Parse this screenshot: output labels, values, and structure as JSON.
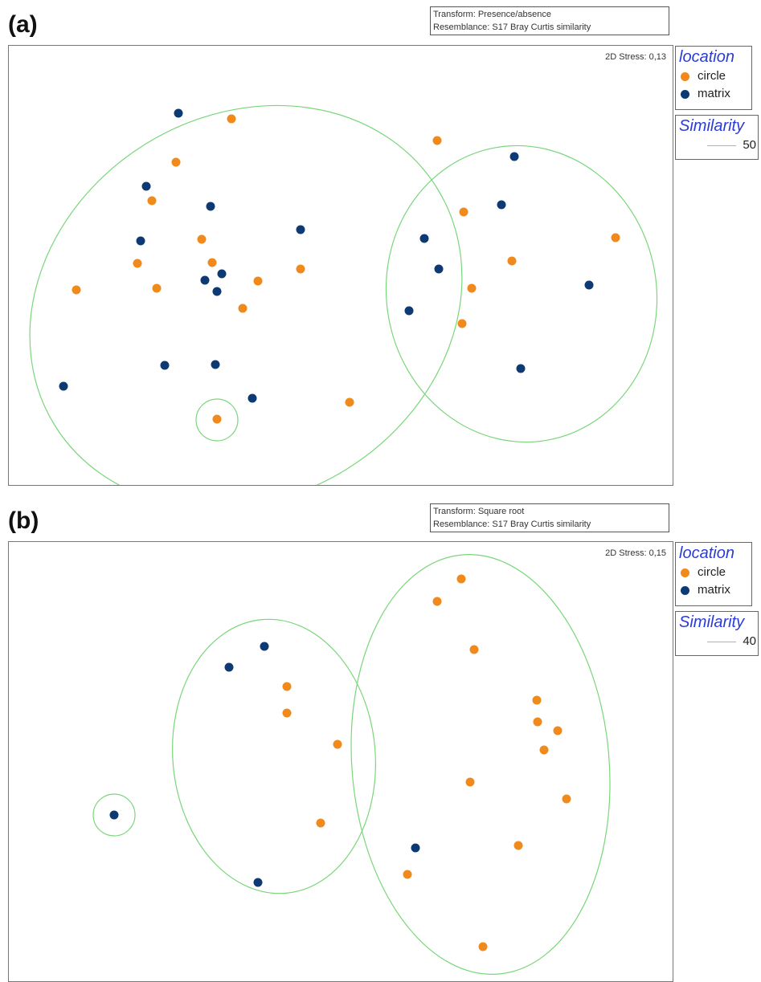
{
  "colors": {
    "circle": "#f08a1c",
    "matrix": "#0d3a73",
    "cluster": "#7ad67a",
    "legend_title": "#2a3cd8"
  },
  "chart_data": [
    {
      "type": "scatter",
      "panel_label": "(a)",
      "transform_text": "Transform: Presence/absence",
      "resemblance_text": "Resemblance: S17 Bray Curtis similarity",
      "stress_text": "2D Stress: 0,13",
      "legend": {
        "title": "location",
        "items": [
          {
            "label": "circle",
            "color": "#f08a1c"
          },
          {
            "label": "matrix",
            "color": "#0d3a73"
          }
        ]
      },
      "similarity_legend": {
        "title": "Similarity",
        "value": "50"
      },
      "xlim": [
        0,
        826
      ],
      "ylim": [
        0,
        547
      ],
      "series": [
        {
          "name": "circle",
          "color": "#f08a1c",
          "x": [
            277,
            208,
            178,
            240,
            253,
            160,
            184,
            84,
            310,
            363,
            291,
            259,
            424,
            533,
            566,
            626,
            755,
            576,
            564
          ],
          "y": [
            91,
            145,
            193,
            241,
            270,
            271,
            302,
            304,
            293,
            278,
            327,
            465,
            444,
            118,
            207,
            268,
            239,
            302,
            346
          ]
        },
        {
          "name": "matrix",
          "color": "#0d3a73",
          "x": [
            211,
            171,
            251,
            164,
            363,
            265,
            244,
            259,
            194,
            257,
            68,
            303,
            629,
            613,
            517,
            535,
            498,
            722,
            637
          ],
          "y": [
            84,
            175,
            200,
            243,
            229,
            284,
            292,
            306,
            398,
            397,
            424,
            439,
            138,
            198,
            240,
            278,
            330,
            298,
            402
          ]
        }
      ],
      "clusters": [
        {
          "cx": 295,
          "cy": 325,
          "rx": 280,
          "ry": 238,
          "rot": -32
        },
        {
          "cx": 638,
          "cy": 309,
          "rx": 168,
          "ry": 185,
          "rot": -10
        },
        {
          "cx": 259,
          "cy": 466,
          "rx": 26,
          "ry": 26,
          "rot": 0
        }
      ]
    },
    {
      "type": "scatter",
      "panel_label": "(b)",
      "transform_text": "Transform: Square root",
      "resemblance_text": "Resemblance: S17 Bray Curtis similarity",
      "stress_text": "2D Stress: 0,15",
      "legend": {
        "title": "location",
        "items": [
          {
            "label": "circle",
            "color": "#f08a1c"
          },
          {
            "label": "matrix",
            "color": "#0d3a73"
          }
        ]
      },
      "similarity_legend": {
        "title": "Similarity",
        "value": "40"
      },
      "xlim": [
        0,
        826
      ],
      "ylim": [
        0,
        547
      ],
      "series": [
        {
          "name": "circle",
          "color": "#f08a1c",
          "x": [
            563,
            533,
            579,
            346,
            346,
            409,
            657,
            658,
            683,
            666,
            574,
            694,
            388,
            634,
            496,
            590
          ],
          "y": [
            46,
            74,
            134,
            180,
            213,
            252,
            197,
            224,
            235,
            259,
            299,
            320,
            350,
            378,
            414,
            504
          ]
        },
        {
          "name": "matrix",
          "color": "#0d3a73",
          "x": [
            318,
            274,
            131,
            506,
            310
          ],
          "y": [
            130,
            156,
            340,
            381,
            424
          ]
        }
      ],
      "clusters": [
        {
          "cx": 330,
          "cy": 267,
          "rx": 126,
          "ry": 171,
          "rot": -5
        },
        {
          "cx": 587,
          "cy": 277,
          "rx": 160,
          "ry": 262,
          "rot": -5
        },
        {
          "cx": 131,
          "cy": 340,
          "rx": 26,
          "ry": 26,
          "rot": 0
        }
      ]
    }
  ]
}
